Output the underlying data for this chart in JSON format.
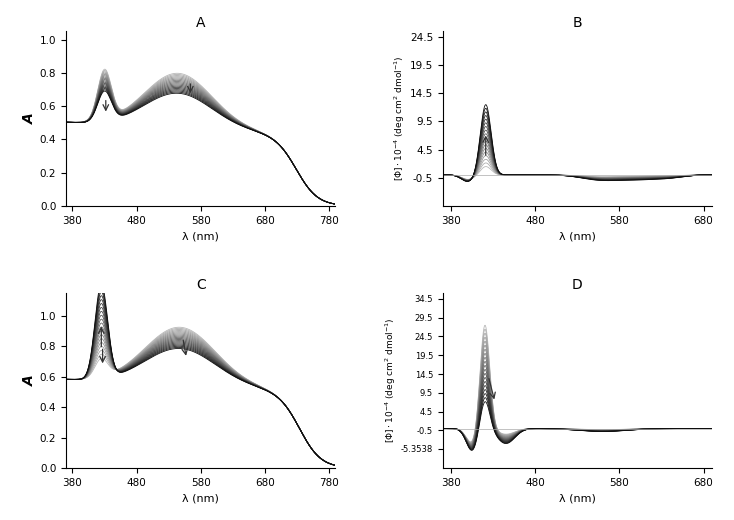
{
  "panel_A": {
    "title": "A",
    "xlim": [
      370,
      790
    ],
    "ylim": [
      0,
      1.05
    ],
    "yticks": [
      0,
      0.2,
      0.4,
      0.6,
      0.8,
      1.0
    ],
    "xticks": [
      380,
      480,
      580,
      680,
      780
    ],
    "n_curves": 18
  },
  "panel_B": {
    "title": "B",
    "xlim": [
      370,
      690
    ],
    "ylim": [
      -5.5,
      25.5
    ],
    "yticks": [
      -0.5,
      4.5,
      9.5,
      14.5,
      19.5,
      24.5
    ],
    "xticks": [
      380,
      480,
      580,
      680
    ],
    "n_curves": 18
  },
  "panel_C": {
    "title": "C",
    "xlim": [
      370,
      790
    ],
    "ylim": [
      0,
      1.15
    ],
    "yticks": [
      0,
      0.2,
      0.4,
      0.6,
      0.8,
      1.0
    ],
    "xticks": [
      380,
      480,
      580,
      680,
      780
    ],
    "n_curves": 20
  },
  "panel_D": {
    "title": "D",
    "xlim": [
      370,
      690
    ],
    "ylim": [
      -10.5,
      36
    ],
    "yticks": [
      -5.3538,
      -0.5,
      4.5,
      9.5,
      14.5,
      19.5,
      24.5,
      29.5,
      34.5
    ],
    "ytick_labels": [
      "-5.3538",
      "-0.5",
      "4.5",
      "9.5",
      "14.5",
      "19.5",
      "24.5",
      "29.5",
      "34.5"
    ],
    "xticks": [
      380,
      480,
      580,
      680
    ],
    "n_curves": 20
  },
  "abs_xlabel": "λ (nm)",
  "ecd_xlabel": "λ (nm)",
  "abs_ylabel": "A",
  "bg_color": "#ffffff"
}
